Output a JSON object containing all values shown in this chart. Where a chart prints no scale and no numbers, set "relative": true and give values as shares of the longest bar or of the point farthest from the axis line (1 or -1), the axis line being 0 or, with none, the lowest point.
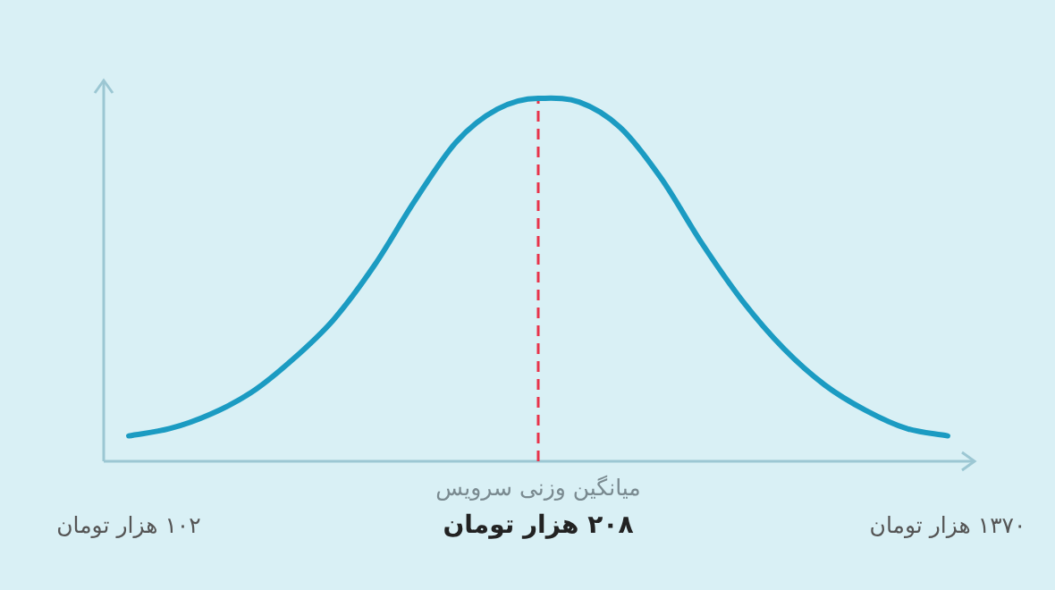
{
  "chart_data": {
    "type": "line",
    "relative": true,
    "color": "#1b9bc2",
    "line_style": "solid",
    "categories": [
      "۱۰۲ هزار تومان",
      null,
      null,
      null,
      null,
      null,
      null,
      null,
      null,
      null,
      "۲۰۸ هزار تومان",
      null,
      null,
      null,
      null,
      null,
      null,
      null,
      null,
      null,
      "۱۳۷۰ هزار تومان"
    ],
    "values": [
      0.07,
      0.09,
      0.13,
      0.19,
      0.28,
      0.39,
      0.54,
      0.72,
      0.88,
      0.97,
      1,
      0.99,
      0.92,
      0.78,
      0.6,
      0.44,
      0.31,
      0.21,
      0.14,
      0.09,
      0.07
    ],
    "ref_lines": [
      {
        "axis": "x",
        "value": "۲۰۸ هزار تومان",
        "label": "میانگین وزنی سرویس",
        "color": "#e8334a",
        "line_style": "dashed"
      }
    ]
  }
}
